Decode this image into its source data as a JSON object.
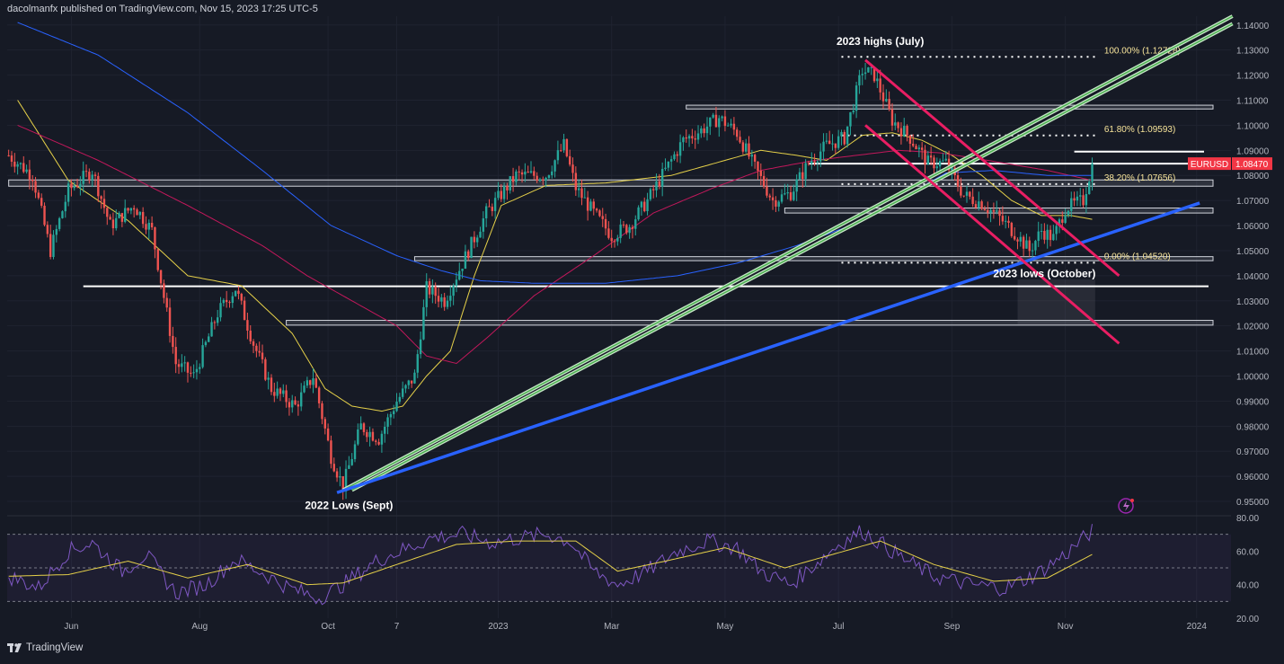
{
  "header": {
    "publisher": "dacolmanfx published on TradingView.com, Nov 15, 2023 17:25 UTC-5"
  },
  "footer": {
    "brand": "TradingView",
    "brand_icon": "tradingview-logo-icon"
  },
  "colors": {
    "background": "#161a25",
    "up": "#26a69a",
    "down": "#ef5350",
    "ma_yellow": "#e5d049",
    "ma_red": "#c2185b",
    "ma_blue": "#2962ff",
    "trend_green": "#4caf50",
    "trend_blue": "#2962ff",
    "channel_pink": "#e91e63",
    "fib": "#f7e49a",
    "rsi": "#7e57c2",
    "rsi_ma": "#e5d049",
    "price_tag": "#f23645"
  },
  "chart_data": {
    "type": "candlestick",
    "symbol": "EURUSD",
    "last_price": "1.08470",
    "price_axis": {
      "min": 0.945,
      "max": 1.1435,
      "ticks": [
        "1.14000",
        "1.13000",
        "1.12000",
        "1.11000",
        "1.10000",
        "1.09000",
        "1.08000",
        "1.07000",
        "1.06000",
        "1.05000",
        "1.04000",
        "1.03000",
        "1.02000",
        "1.01000",
        "1.00000",
        "0.99000",
        "0.98000",
        "0.97000",
        "0.96000",
        "0.95000"
      ]
    },
    "time_axis": {
      "labels": [
        "Jun",
        "Aug",
        "Oct",
        "7",
        "2023",
        "Mar",
        "May",
        "Jul",
        "Sep",
        "Nov",
        "2024"
      ],
      "label_index": [
        21,
        64,
        107,
        130,
        164,
        202,
        240,
        278,
        316,
        354,
        398
      ],
      "total_periods": 410
    },
    "fibonacci": [
      {
        "label": "100.00% (1.12728)",
        "level": 1.12728
      },
      {
        "label": "61.80% (1.09593)",
        "level": 1.09593
      },
      {
        "label": "38.20% (1.07656)",
        "level": 1.07656
      },
      {
        "label": "0.00% (1.04520)",
        "level": 1.0452
      }
    ],
    "horizontal_levels": [
      1.0358,
      1.0847,
      1.0895
    ],
    "zones": [
      {
        "from": 1.0757,
        "to": 1.0782,
        "start_index": 0
      },
      {
        "from": 1.067,
        "to": 1.065,
        "start_index": 260
      },
      {
        "from": 1.0476,
        "to": 1.046,
        "start_index": 136
      },
      {
        "from": 1.0222,
        "to": 1.0203,
        "start_index": 93
      },
      {
        "from": 1.108,
        "to": 1.1065,
        "start_index": 227
      }
    ],
    "annotations": [
      {
        "text": "2023 highs (July)",
        "index": 292,
        "price": 1.132
      },
      {
        "text": "2022 Lows (Sept)",
        "index": 114,
        "price": 0.947
      },
      {
        "text": "2023 lows (October)",
        "index": 347,
        "price": 1.0395
      }
    ],
    "trendlines": [
      {
        "name": "green-channel-upper",
        "x1": 112,
        "y1": 0.9545,
        "x2": 410,
        "y2": 1.1435
      },
      {
        "name": "green-channel-lower",
        "x1": 115,
        "y1": 0.9545,
        "x2": 410,
        "y2": 1.1405
      },
      {
        "name": "blue-support",
        "x1": 110,
        "y1": 0.9535,
        "x2": 399,
        "y2": 1.069
      },
      {
        "name": "pink-channel-upper",
        "x1": 287,
        "y1": 1.126,
        "x2": 372,
        "y2": 1.04
      },
      {
        "name": "pink-channel-lower",
        "x1": 287,
        "y1": 1.1,
        "x2": 372,
        "y2": 1.013
      }
    ],
    "price_anchors": [
      [
        0,
        1.088
      ],
      [
        8,
        1.08
      ],
      [
        14,
        1.05
      ],
      [
        20,
        1.074
      ],
      [
        28,
        1.082
      ],
      [
        34,
        1.06
      ],
      [
        42,
        1.068
      ],
      [
        48,
        1.058
      ],
      [
        56,
        1.005
      ],
      [
        62,
        1.0
      ],
      [
        70,
        1.025
      ],
      [
        76,
        1.035
      ],
      [
        82,
        1.013
      ],
      [
        88,
        0.995
      ],
      [
        96,
        0.988
      ],
      [
        102,
        1.0
      ],
      [
        108,
        0.968
      ],
      [
        112,
        0.956
      ],
      [
        118,
        0.98
      ],
      [
        124,
        0.975
      ],
      [
        130,
        0.99
      ],
      [
        136,
        1.0
      ],
      [
        140,
        1.035
      ],
      [
        146,
        1.03
      ],
      [
        152,
        1.045
      ],
      [
        160,
        1.065
      ],
      [
        170,
        1.08
      ],
      [
        180,
        1.08
      ],
      [
        186,
        1.092
      ],
      [
        190,
        1.075
      ],
      [
        196,
        1.065
      ],
      [
        202,
        1.056
      ],
      [
        208,
        1.06
      ],
      [
        214,
        1.07
      ],
      [
        220,
        1.082
      ],
      [
        226,
        1.094
      ],
      [
        232,
        1.098
      ],
      [
        238,
        1.103
      ],
      [
        244,
        1.097
      ],
      [
        250,
        1.083
      ],
      [
        256,
        1.07
      ],
      [
        262,
        1.073
      ],
      [
        268,
        1.085
      ],
      [
        274,
        1.092
      ],
      [
        280,
        1.095
      ],
      [
        286,
        1.122
      ],
      [
        290,
        1.12
      ],
      [
        296,
        1.102
      ],
      [
        302,
        1.095
      ],
      [
        308,
        1.085
      ],
      [
        314,
        1.085
      ],
      [
        320,
        1.072
      ],
      [
        326,
        1.069
      ],
      [
        332,
        1.063
      ],
      [
        338,
        1.056
      ],
      [
        342,
        1.05
      ],
      [
        346,
        1.058
      ],
      [
        350,
        1.055
      ],
      [
        354,
        1.067
      ],
      [
        360,
        1.07
      ],
      [
        363,
        1.0847
      ]
    ],
    "ma_yellow": [
      [
        3,
        1.11
      ],
      [
        20,
        1.078
      ],
      [
        40,
        1.062
      ],
      [
        60,
        1.04
      ],
      [
        78,
        1.036
      ],
      [
        95,
        1.017
      ],
      [
        106,
        0.995
      ],
      [
        115,
        0.988
      ],
      [
        125,
        0.986
      ],
      [
        132,
        0.988
      ],
      [
        140,
        1.0
      ],
      [
        148,
        1.01
      ],
      [
        156,
        1.04
      ],
      [
        165,
        1.068
      ],
      [
        180,
        1.076
      ],
      [
        200,
        1.077
      ],
      [
        222,
        1.08
      ],
      [
        240,
        1.086
      ],
      [
        252,
        1.09
      ],
      [
        264,
        1.088
      ],
      [
        274,
        1.086
      ],
      [
        286,
        1.096
      ],
      [
        296,
        1.097
      ],
      [
        306,
        1.094
      ],
      [
        316,
        1.088
      ],
      [
        326,
        1.08
      ],
      [
        336,
        1.07
      ],
      [
        346,
        1.064
      ],
      [
        356,
        1.064
      ],
      [
        363,
        1.0625
      ]
    ],
    "ma_red": [
      [
        3,
        1.1
      ],
      [
        30,
        1.086
      ],
      [
        60,
        1.068
      ],
      [
        85,
        1.052
      ],
      [
        100,
        1.04
      ],
      [
        115,
        1.03
      ],
      [
        130,
        1.02
      ],
      [
        140,
        1.008
      ],
      [
        150,
        1.005
      ],
      [
        160,
        1.015
      ],
      [
        176,
        1.032
      ],
      [
        196,
        1.048
      ],
      [
        216,
        1.065
      ],
      [
        236,
        1.075
      ],
      [
        252,
        1.082
      ],
      [
        270,
        1.086
      ],
      [
        284,
        1.088
      ],
      [
        298,
        1.09
      ],
      [
        312,
        1.089
      ],
      [
        328,
        1.086
      ],
      [
        348,
        1.082
      ],
      [
        363,
        1.078
      ]
    ],
    "ma_blue": [
      [
        3,
        1.141
      ],
      [
        30,
        1.128
      ],
      [
        60,
        1.105
      ],
      [
        85,
        1.082
      ],
      [
        108,
        1.06
      ],
      [
        130,
        1.048
      ],
      [
        145,
        1.042
      ],
      [
        158,
        1.038
      ],
      [
        176,
        1.037
      ],
      [
        200,
        1.037
      ],
      [
        224,
        1.04
      ],
      [
        244,
        1.045
      ],
      [
        264,
        1.052
      ],
      [
        282,
        1.06
      ],
      [
        298,
        1.07
      ],
      [
        314,
        1.081
      ],
      [
        330,
        1.082
      ],
      [
        348,
        1.08
      ],
      [
        363,
        1.08
      ]
    ],
    "rsi": {
      "range": [
        20,
        80
      ],
      "ticks": [
        "80.00",
        "60.00",
        "40.00",
        "20.00"
      ],
      "bands": [
        70,
        50,
        30
      ],
      "anchors": [
        [
          0,
          45
        ],
        [
          10,
          38
        ],
        [
          20,
          60
        ],
        [
          28,
          65
        ],
        [
          38,
          48
        ],
        [
          46,
          58
        ],
        [
          56,
          35
        ],
        [
          66,
          40
        ],
        [
          76,
          55
        ],
        [
          84,
          48
        ],
        [
          94,
          38
        ],
        [
          104,
          32
        ],
        [
          112,
          40
        ],
        [
          124,
          55
        ],
        [
          134,
          62
        ],
        [
          142,
          68
        ],
        [
          152,
          70
        ],
        [
          162,
          65
        ],
        [
          172,
          68
        ],
        [
          180,
          70
        ],
        [
          188,
          66
        ],
        [
          196,
          48
        ],
        [
          204,
          40
        ],
        [
          214,
          48
        ],
        [
          224,
          60
        ],
        [
          234,
          66
        ],
        [
          244,
          62
        ],
        [
          252,
          48
        ],
        [
          262,
          40
        ],
        [
          270,
          52
        ],
        [
          278,
          64
        ],
        [
          286,
          72
        ],
        [
          292,
          65
        ],
        [
          300,
          55
        ],
        [
          310,
          45
        ],
        [
          322,
          40
        ],
        [
          334,
          38
        ],
        [
          344,
          46
        ],
        [
          354,
          58
        ],
        [
          363,
          72
        ]
      ],
      "ma_anchors": [
        [
          0,
          45
        ],
        [
          20,
          46
        ],
        [
          40,
          54
        ],
        [
          60,
          44
        ],
        [
          80,
          52
        ],
        [
          100,
          40
        ],
        [
          112,
          41
        ],
        [
          130,
          52
        ],
        [
          150,
          64
        ],
        [
          170,
          66
        ],
        [
          190,
          66
        ],
        [
          204,
          48
        ],
        [
          220,
          54
        ],
        [
          240,
          62
        ],
        [
          260,
          50
        ],
        [
          280,
          60
        ],
        [
          292,
          66
        ],
        [
          310,
          52
        ],
        [
          330,
          42
        ],
        [
          348,
          44
        ],
        [
          363,
          58
        ]
      ]
    }
  }
}
